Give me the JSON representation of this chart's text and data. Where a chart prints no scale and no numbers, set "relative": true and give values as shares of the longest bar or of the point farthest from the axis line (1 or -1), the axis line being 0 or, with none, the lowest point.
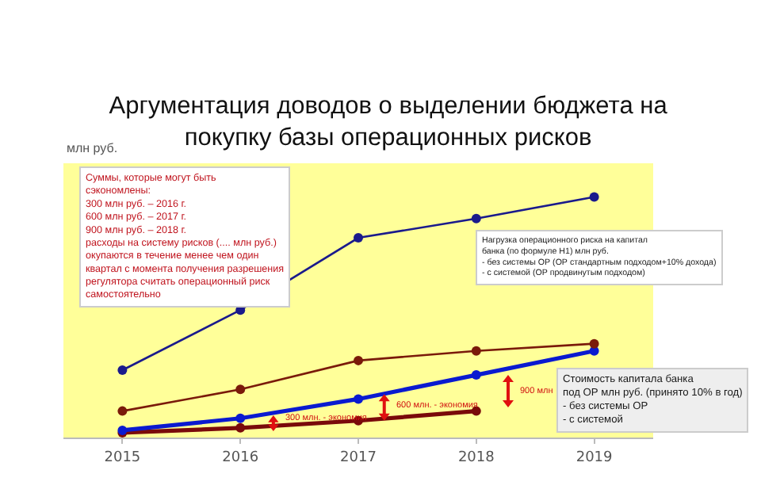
{
  "chart_data": {
    "type": "line",
    "title": "Аргументация доводов о выделении бюджета на\nпокупку базы операционных рисков",
    "ylabel": "млн руб.",
    "relative": true,
    "categories": [
      "2015",
      "2016",
      "2017",
      "2018",
      "2019"
    ],
    "marker": "circle",
    "line_style": "solid",
    "series": [
      {
        "color": "#1a1a8c",
        "values": [
          0.28,
          0.53,
          0.83,
          0.91,
          1
        ]
      },
      {
        "color": "#7a1a0a",
        "values": [
          0.11,
          0.2,
          0.32,
          0.36,
          0.39
        ]
      },
      {
        "color": "#0a1ad0",
        "values": [
          0.03,
          0.08,
          0.16,
          0.26,
          0.36
        ]
      },
      {
        "color": "#7a0a0a",
        "values": [
          0.02,
          0.04,
          0.07,
          0.11,
          null
        ]
      }
    ],
    "annotations": [
      "Суммы, которые могут быть\nсэкономлены:\n300 млн руб. – 2016 г.\n600 млн руб. – 2017 г.\n900 млн руб. – 2018 г.\nрасходы на систему рисков (.... млн руб.)\nокупаются в течение менее чем один\nквартал с момента получения разрешения\nрегулятора считать операционный риск\nсамостоятельно",
      "Нагрузка операционного риска на капитал\nбанка (по формуле Н1) млн руб.\n- без системы ОР (ОР стандартным подходом+10% дохода)\n- с системой (ОР продвинутым подходом)",
      "Стоимость капитала банка\nпод ОР млн руб. (принято 10% в год)\n- без системы ОР\n- с системой",
      "300 млн. - экономия",
      "600 млн. - экономия",
      "900 млн"
    ]
  }
}
